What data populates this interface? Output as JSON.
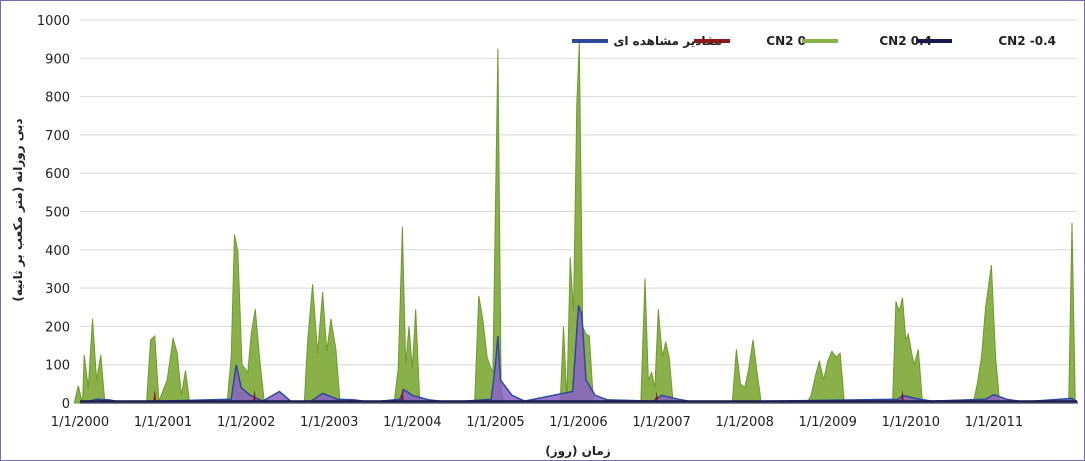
{
  "chart_data": {
    "type": "area",
    "title": "",
    "xlabel": "زمان (روز)",
    "ylabel": "دبی روزانه (متر مکعب بر ثانیه)",
    "ylim": [
      0,
      1000
    ],
    "yticks": [
      0,
      100,
      200,
      300,
      400,
      500,
      600,
      700,
      800,
      900,
      1000
    ],
    "xlim": [
      2000,
      2012
    ],
    "xticks": [
      {
        "value": 2000,
        "label": "1/1/2000"
      },
      {
        "value": 2001,
        "label": "1/1/2001"
      },
      {
        "value": 2002,
        "label": "1/1/2002"
      },
      {
        "value": 2003,
        "label": "1/1/2003"
      },
      {
        "value": 2004,
        "label": "1/1/2004"
      },
      {
        "value": 2005,
        "label": "1/1/2005"
      },
      {
        "value": 2006,
        "label": "1/1/2006"
      },
      {
        "value": 2007,
        "label": "1/1/2007"
      },
      {
        "value": 2008,
        "label": "1/1/2008"
      },
      {
        "value": 2009,
        "label": "1/1/2009"
      },
      {
        "value": 2010,
        "label": "1/1/2010"
      },
      {
        "value": 2011,
        "label": "1/1/2011"
      }
    ],
    "grid": "horizontal",
    "legend": "top",
    "series": [
      {
        "name": "CN2 0.4",
        "color": "#8ab04a",
        "peaks": [
          [
            1999.93,
            0
          ],
          [
            1999.98,
            45
          ],
          [
            2000.03,
            0
          ],
          [
            2000.05,
            125
          ],
          [
            2000.1,
            40
          ],
          [
            2000.15,
            220
          ],
          [
            2000.2,
            60
          ],
          [
            2000.25,
            125
          ],
          [
            2000.3,
            0
          ],
          [
            2000.8,
            0
          ],
          [
            2000.85,
            165
          ],
          [
            2000.9,
            175
          ],
          [
            2000.95,
            5
          ],
          [
            2001.05,
            60
          ],
          [
            2001.12,
            170
          ],
          [
            2001.17,
            130
          ],
          [
            2001.22,
            20
          ],
          [
            2001.27,
            85
          ],
          [
            2001.32,
            0
          ],
          [
            2001.77,
            0
          ],
          [
            2001.82,
            120
          ],
          [
            2001.86,
            440
          ],
          [
            2001.9,
            395
          ],
          [
            2001.95,
            100
          ],
          [
            2002.02,
            80
          ],
          [
            2002.06,
            180
          ],
          [
            2002.11,
            245
          ],
          [
            2002.16,
            120
          ],
          [
            2002.22,
            0
          ],
          [
            2002.7,
            0
          ],
          [
            2002.74,
            160
          ],
          [
            2002.8,
            310
          ],
          [
            2002.86,
            130
          ],
          [
            2002.92,
            290
          ],
          [
            2002.97,
            135
          ],
          [
            2003.02,
            220
          ],
          [
            2003.08,
            140
          ],
          [
            2003.13,
            0
          ],
          [
            2003.78,
            0
          ],
          [
            2003.83,
            90
          ],
          [
            2003.88,
            460
          ],
          [
            2003.92,
            100
          ],
          [
            2003.96,
            200
          ],
          [
            2004.0,
            90
          ],
          [
            2004.04,
            245
          ],
          [
            2004.09,
            0
          ],
          [
            2004.75,
            0
          ],
          [
            2004.8,
            280
          ],
          [
            2004.85,
            215
          ],
          [
            2004.9,
            120
          ],
          [
            2004.93,
            100
          ],
          [
            2004.97,
            80
          ],
          [
            2005.03,
            925
          ],
          [
            2005.07,
            30
          ],
          [
            2005.11,
            0
          ],
          [
            2005.78,
            0
          ],
          [
            2005.82,
            200
          ],
          [
            2005.86,
            5
          ],
          [
            2005.9,
            380
          ],
          [
            2005.94,
            240
          ],
          [
            2005.98,
            780
          ],
          [
            2006.01,
            940
          ],
          [
            2006.05,
            200
          ],
          [
            2006.09,
            180
          ],
          [
            2006.13,
            175
          ],
          [
            2006.18,
            0
          ],
          [
            2006.75,
            0
          ],
          [
            2006.8,
            325
          ],
          [
            2006.84,
            60
          ],
          [
            2006.88,
            80
          ],
          [
            2006.92,
            40
          ],
          [
            2006.96,
            245
          ],
          [
            2007.01,
            120
          ],
          [
            2007.05,
            160
          ],
          [
            2007.09,
            120
          ],
          [
            2007.14,
            0
          ],
          [
            2007.85,
            0
          ],
          [
            2007.9,
            140
          ],
          [
            2007.95,
            50
          ],
          [
            2008.0,
            40
          ],
          [
            2008.05,
            90
          ],
          [
            2008.1,
            165
          ],
          [
            2008.15,
            80
          ],
          [
            2008.2,
            0
          ],
          [
            2008.75,
            0
          ],
          [
            2008.8,
            20
          ],
          [
            2008.85,
            70
          ],
          [
            2008.9,
            110
          ],
          [
            2008.95,
            60
          ],
          [
            2009.0,
            110
          ],
          [
            2009.05,
            135
          ],
          [
            2009.1,
            120
          ],
          [
            2009.15,
            130
          ],
          [
            2009.2,
            0
          ],
          [
            2009.78,
            0
          ],
          [
            2009.82,
            265
          ],
          [
            2009.86,
            240
          ],
          [
            2009.9,
            275
          ],
          [
            2009.94,
            165
          ],
          [
            2009.97,
            180
          ],
          [
            2010.01,
            130
          ],
          [
            2010.04,
            100
          ],
          [
            2010.09,
            140
          ],
          [
            2010.14,
            0
          ],
          [
            2010.75,
            0
          ],
          [
            2010.8,
            50
          ],
          [
            2010.85,
            120
          ],
          [
            2010.9,
            250
          ],
          [
            2010.97,
            360
          ],
          [
            2011.02,
            120
          ],
          [
            2011.07,
            0
          ],
          [
            2011.9,
            0
          ],
          [
            2011.94,
            470
          ],
          [
            2011.98,
            0
          ]
        ]
      },
      {
        "name": "CN2 0",
        "color": "#8b1a1a",
        "peaks": [
          [
            2000.88,
            0
          ],
          [
            2000.9,
            35
          ],
          [
            2000.92,
            0
          ],
          [
            2002.08,
            0
          ],
          [
            2002.1,
            35
          ],
          [
            2002.12,
            0
          ],
          [
            2003.86,
            0
          ],
          [
            2003.88,
            40
          ],
          [
            2003.9,
            0
          ],
          [
            2009.88,
            0
          ],
          [
            2009.9,
            35
          ],
          [
            2009.92,
            0
          ],
          [
            2006.92,
            0
          ],
          [
            2006.94,
            30
          ],
          [
            2006.96,
            0
          ]
        ]
      },
      {
        "name": "CN2 -0.4",
        "color": "#1a1a4e",
        "peaks": []
      },
      {
        "name": "مقادیر مشاهده ای",
        "color": "#2e4a9c",
        "peaks": [
          [
            2000.12,
            5
          ],
          [
            2000.2,
            10
          ],
          [
            2000.35,
            8
          ],
          [
            2000.5,
            2
          ],
          [
            2001.82,
            10
          ],
          [
            2001.88,
            100
          ],
          [
            2001.94,
            40
          ],
          [
            2002.05,
            20
          ],
          [
            2002.2,
            5
          ],
          [
            2002.4,
            30
          ],
          [
            2002.55,
            2
          ],
          [
            2002.78,
            5
          ],
          [
            2002.92,
            25
          ],
          [
            2003.1,
            10
          ],
          [
            2003.3,
            8
          ],
          [
            2003.5,
            2
          ],
          [
            2003.85,
            10
          ],
          [
            2003.9,
            35
          ],
          [
            2004.0,
            20
          ],
          [
            2004.2,
            8
          ],
          [
            2004.45,
            2
          ],
          [
            2004.95,
            10
          ],
          [
            2005.0,
            100
          ],
          [
            2005.03,
            175
          ],
          [
            2005.06,
            60
          ],
          [
            2005.2,
            20
          ],
          [
            2005.35,
            5
          ],
          [
            2005.93,
            30
          ],
          [
            2006.0,
            255
          ],
          [
            2006.04,
            230
          ],
          [
            2006.09,
            60
          ],
          [
            2006.2,
            20
          ],
          [
            2006.35,
            8
          ],
          [
            2006.9,
            5
          ],
          [
            2007.0,
            20
          ],
          [
            2007.2,
            10
          ],
          [
            2007.4,
            2
          ],
          [
            2009.85,
            10
          ],
          [
            2009.9,
            20
          ],
          [
            2010.05,
            12
          ],
          [
            2010.25,
            5
          ],
          [
            2010.9,
            10
          ],
          [
            2011.0,
            22
          ],
          [
            2011.15,
            10
          ],
          [
            2011.35,
            3
          ],
          [
            2011.94,
            12
          ],
          [
            2012.0,
            3
          ]
        ]
      }
    ]
  }
}
